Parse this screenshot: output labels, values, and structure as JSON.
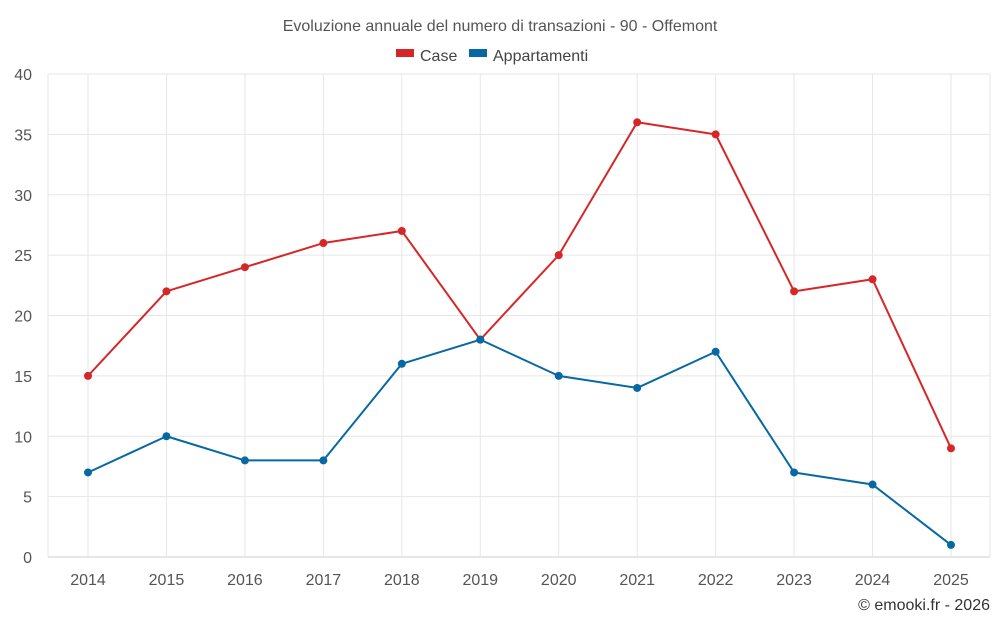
{
  "chart_data": {
    "type": "line",
    "title": "Evoluzione annuale del numero di transazioni - 90 - Offemont",
    "categories": [
      "2014",
      "2015",
      "2016",
      "2017",
      "2018",
      "2019",
      "2020",
      "2021",
      "2022",
      "2023",
      "2024",
      "2025"
    ],
    "series": [
      {
        "name": "Case",
        "color": "#d62728",
        "values": [
          15,
          22,
          24,
          26,
          27,
          18,
          25,
          36,
          35,
          22,
          23,
          9
        ]
      },
      {
        "name": "Appartamenti",
        "color": "#0868a3",
        "values": [
          7,
          10,
          8,
          8,
          16,
          18,
          15,
          14,
          17,
          7,
          6,
          1
        ]
      }
    ],
    "ylim": [
      0,
      40
    ],
    "yticks": [
      "0",
      "5",
      "10",
      "15",
      "20",
      "25",
      "30",
      "35",
      "40"
    ],
    "xlabel": "",
    "ylabel": "",
    "legend_position": "top-center",
    "grid": true
  },
  "credit": "© emooki.fr - 2026"
}
